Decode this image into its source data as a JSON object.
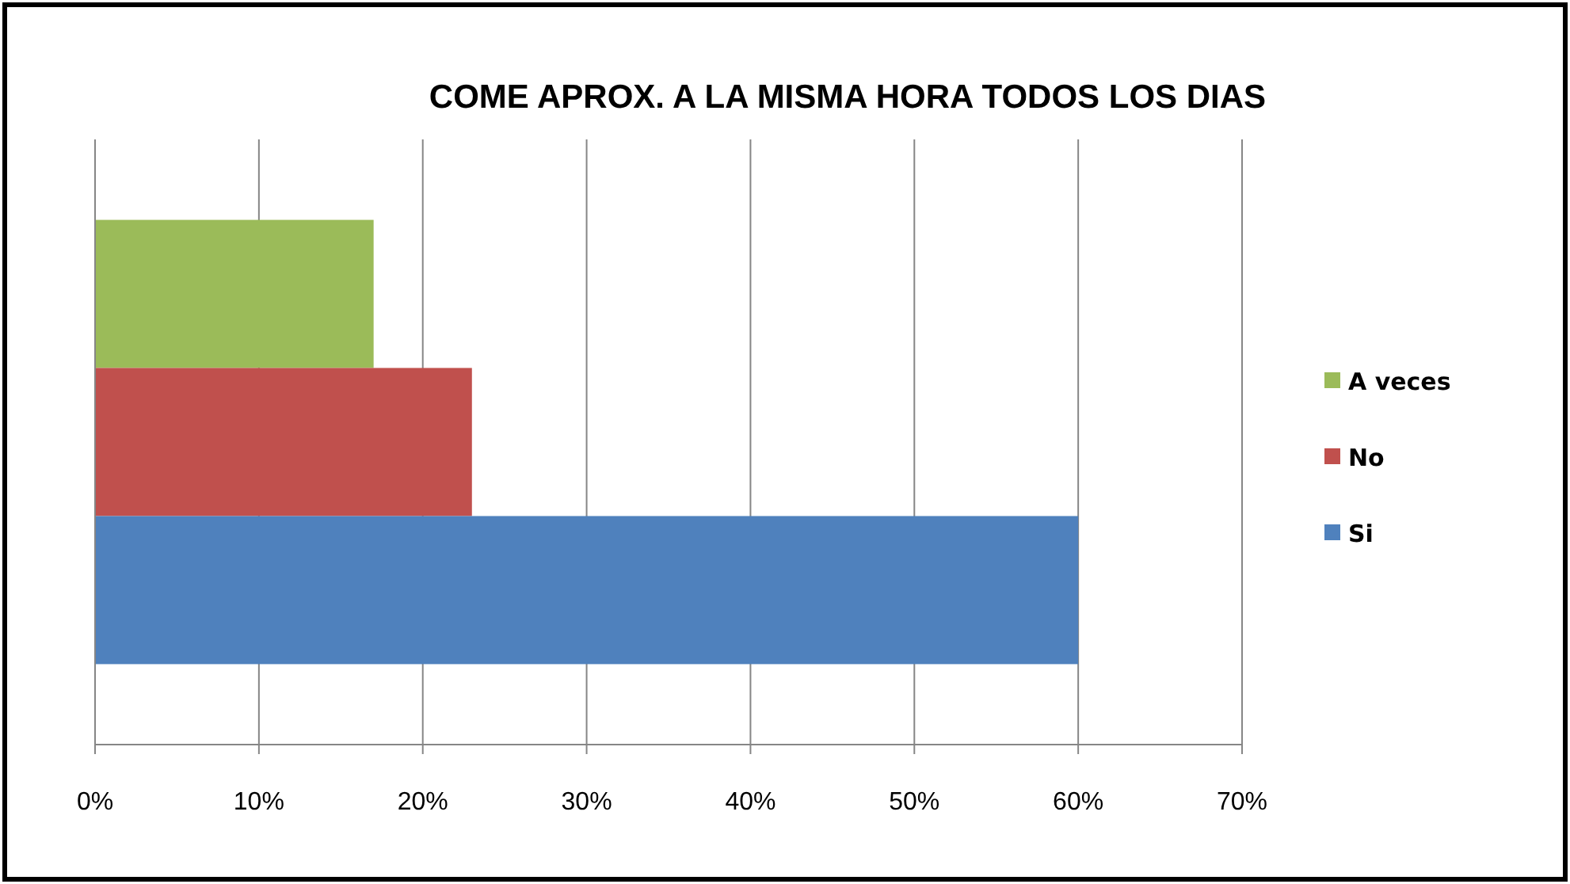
{
  "chart_data": {
    "type": "bar",
    "orientation": "horizontal",
    "title": "COME APROX. A LA MISMA HORA TODOS LOS DIAS",
    "categories": [
      null
    ],
    "series": [
      {
        "name": "A veces",
        "color": "#9bbb59",
        "values": [
          17
        ]
      },
      {
        "name": "No",
        "color": "#c0504d",
        "values": [
          23
        ]
      },
      {
        "name": "Si",
        "color": "#4f81bd",
        "values": [
          60
        ]
      }
    ],
    "xlim": [
      0,
      70
    ],
    "xticks": [
      {
        "value": 0,
        "label": "0%"
      },
      {
        "value": 10,
        "label": "10%"
      },
      {
        "value": 20,
        "label": "20%"
      },
      {
        "value": 30,
        "label": "30%"
      },
      {
        "value": 40,
        "label": "40%"
      },
      {
        "value": 50,
        "label": "50%"
      },
      {
        "value": 60,
        "label": "60%"
      },
      {
        "value": 70,
        "label": "70%"
      }
    ],
    "grid": "x",
    "legend": "right"
  }
}
